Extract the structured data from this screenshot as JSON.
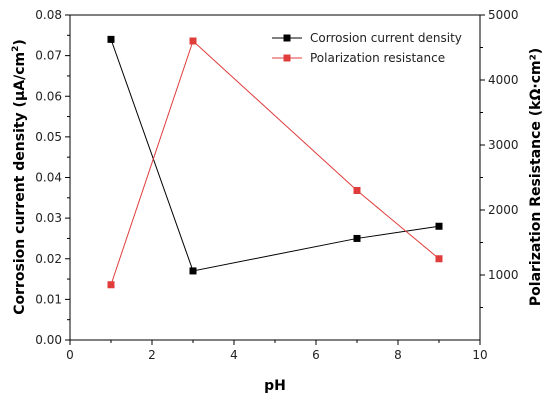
{
  "chart_data": {
    "type": "line",
    "xlabel": "pH",
    "ylabel_left_main": "Corrosion current density (μA/cm",
    "ylabel_left_sup": "2",
    "ylabel_left_end": ")",
    "ylabel_right": "Polarization Resistance (kΩ·cm²)",
    "xlim": [
      0,
      10
    ],
    "ylim_left": [
      0,
      0.08
    ],
    "ylim_right": [
      0,
      5000
    ],
    "xticks": [
      "0",
      "2",
      "4",
      "6",
      "8",
      "10"
    ],
    "yticks_left": [
      "0.00",
      "0.01",
      "0.02",
      "0.03",
      "0.04",
      "0.05",
      "0.06",
      "0.07",
      "0.08"
    ],
    "yticks_right": [
      "1000",
      "2000",
      "3000",
      "4000",
      "5000"
    ],
    "legend_position": "top-right",
    "grid": false,
    "series": [
      {
        "name": "Corrosion current density",
        "axis": "left",
        "color": "#000000",
        "x": [
          1,
          3,
          7,
          9
        ],
        "y": [
          0.074,
          0.017,
          0.025,
          0.028
        ]
      },
      {
        "name": "Polarization resistance",
        "axis": "right",
        "color": "#e03c3c",
        "x": [
          1,
          3,
          7,
          9
        ],
        "y": [
          850,
          4600,
          2300,
          1250
        ]
      }
    ]
  }
}
